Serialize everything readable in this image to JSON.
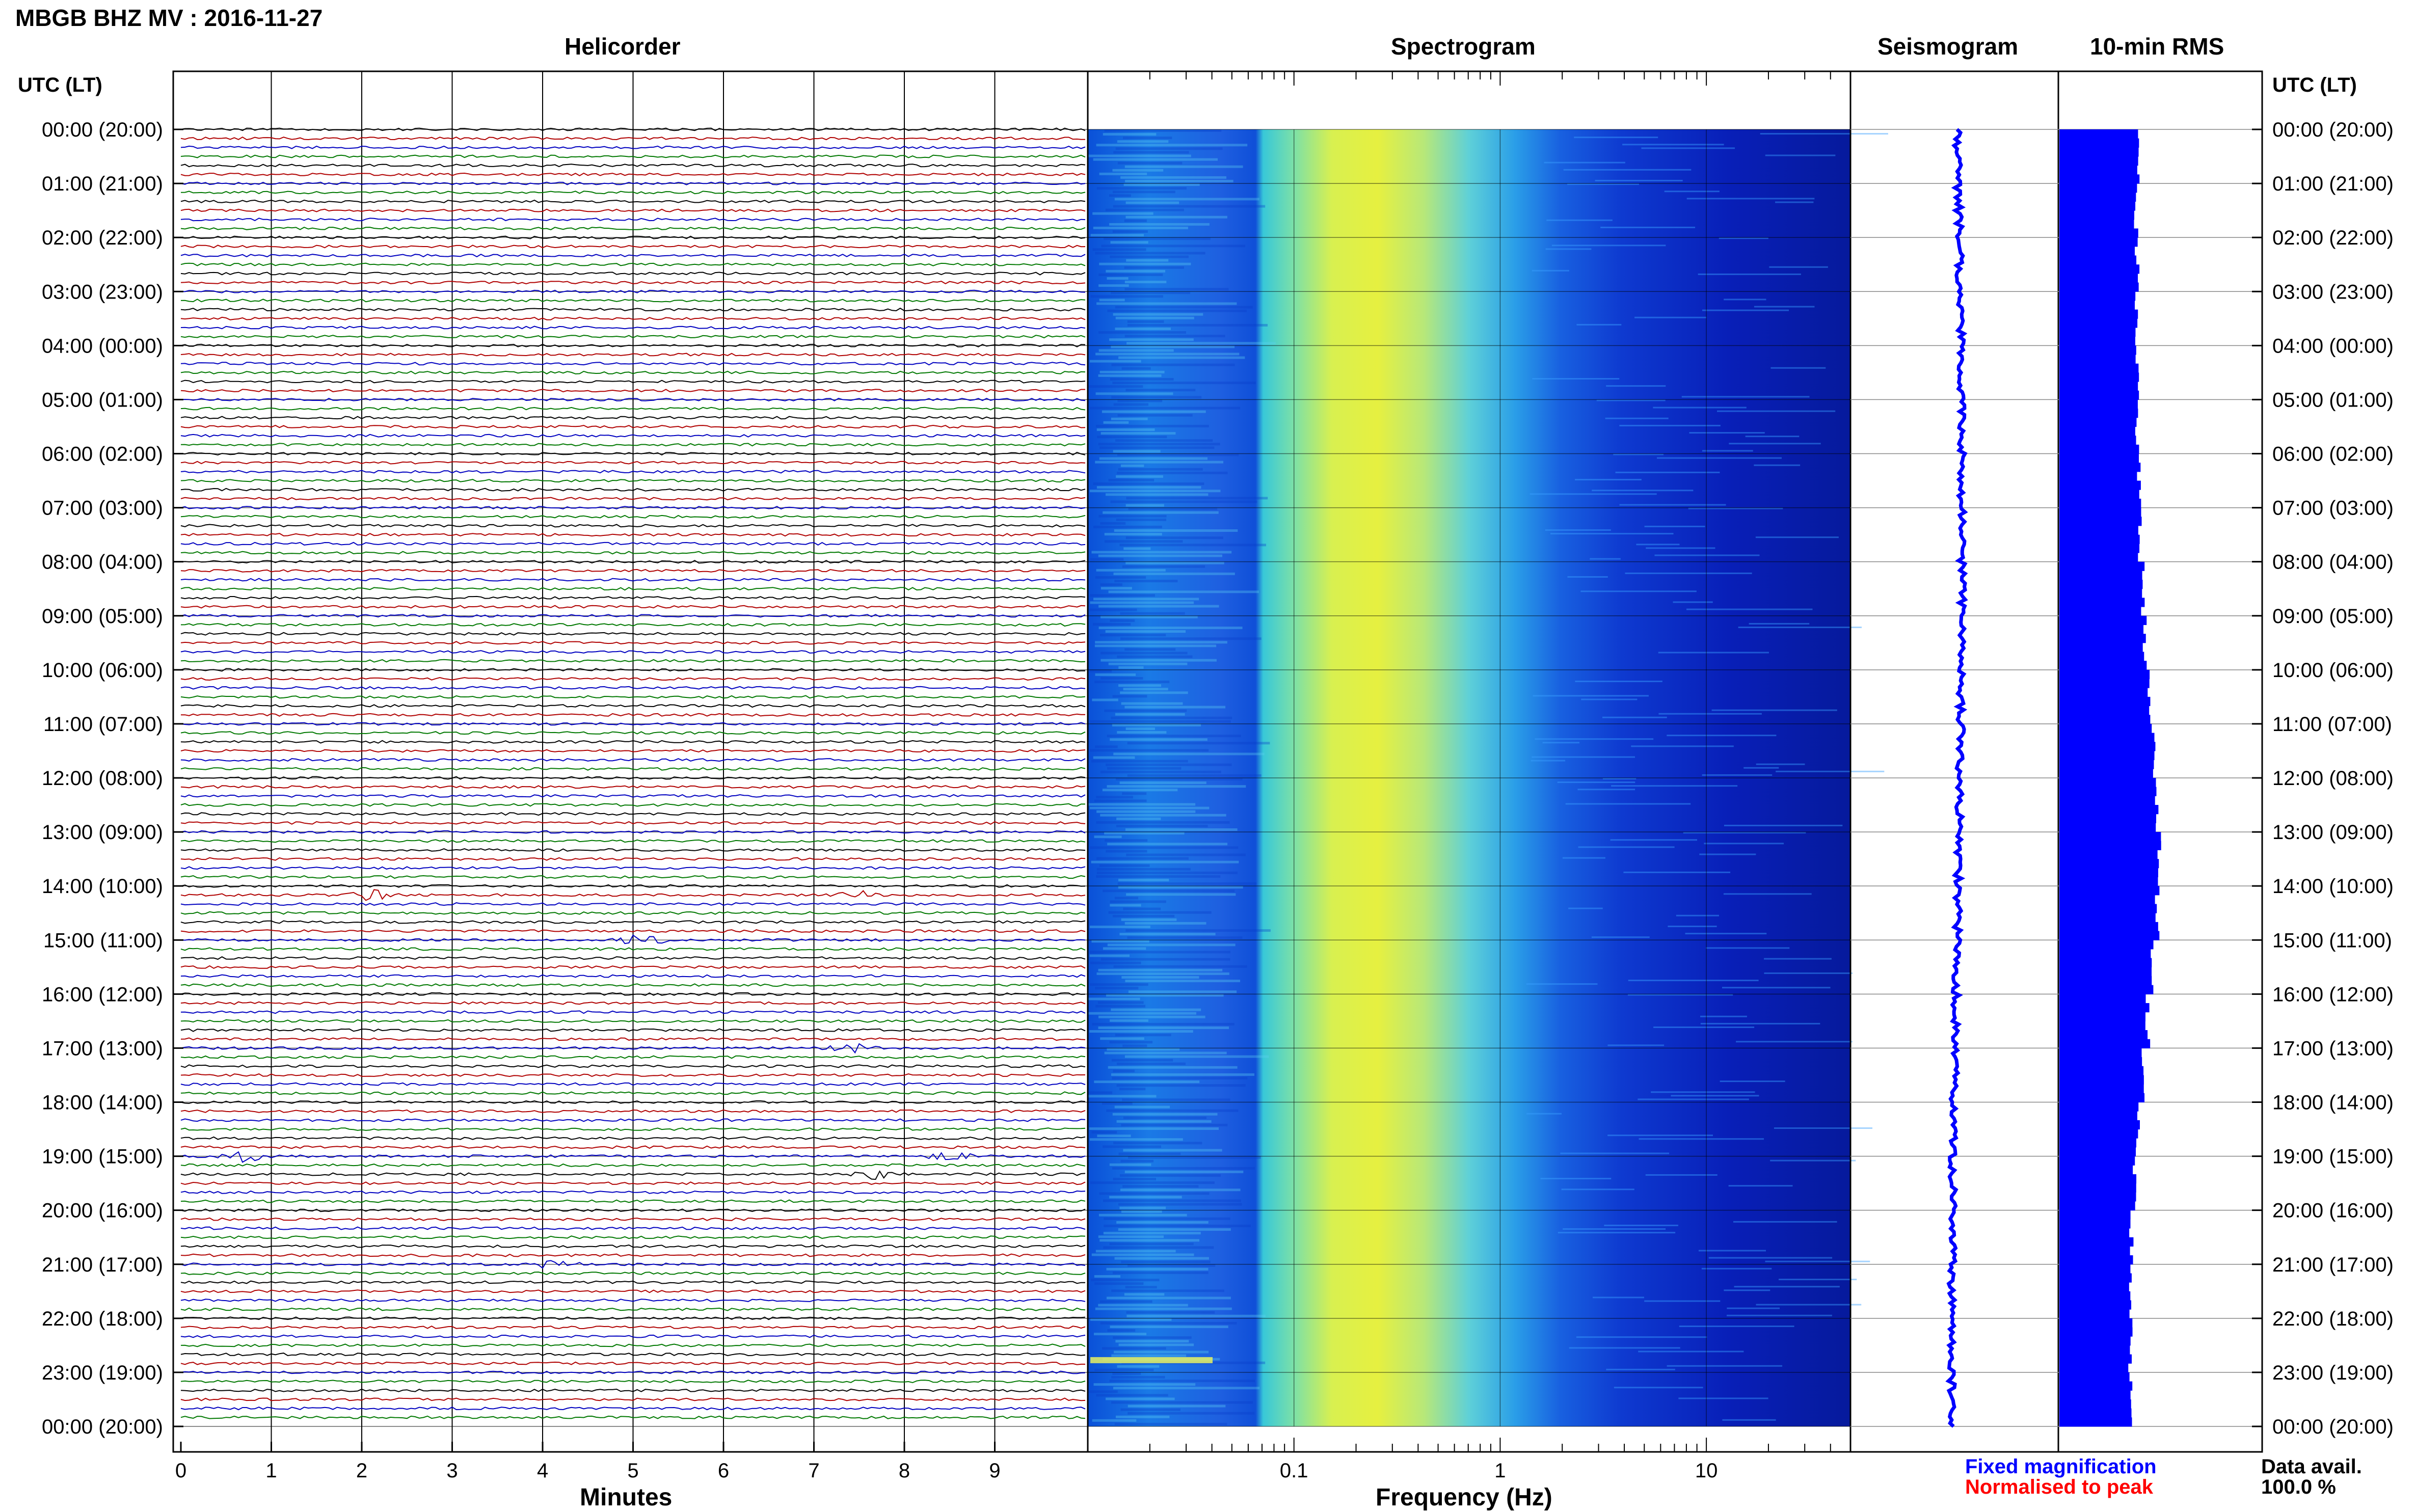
{
  "title": "MBGB BHZ MV : 2016-11-27",
  "panels": {
    "helicorder": "Helicorder",
    "spectrogram": "Spectrogram",
    "seismogram": "Seismogram",
    "rms": "10-min RMS"
  },
  "utc_label": "UTC (LT)",
  "time_labels": [
    "00:00 (20:00)",
    "01:00 (21:00)",
    "02:00 (22:00)",
    "03:00 (23:00)",
    "04:00 (00:00)",
    "05:00 (01:00)",
    "06:00 (02:00)",
    "07:00 (03:00)",
    "08:00 (04:00)",
    "09:00 (05:00)",
    "10:00 (06:00)",
    "11:00 (07:00)",
    "12:00 (08:00)",
    "13:00 (09:00)",
    "14:00 (10:00)",
    "15:00 (11:00)",
    "16:00 (12:00)",
    "17:00 (13:00)",
    "18:00 (14:00)",
    "19:00 (15:00)",
    "20:00 (16:00)",
    "21:00 (17:00)",
    "22:00 (18:00)",
    "23:00 (19:00)",
    "00:00 (20:00)"
  ],
  "footer": {
    "fixed_magnification": "Fixed magnification",
    "normalised_to_peak": "Normalised to peak",
    "data_avail_label": "Data avail.",
    "data_avail_value": "100.0 %"
  },
  "colors": {
    "trace": [
      "#000000",
      "#b00000",
      "#0000c0",
      "#007800"
    ],
    "fixed_magnification": "#0000ff",
    "normalised_to_peak": "#ff0000",
    "rms_bar": "#0000ff"
  },
  "chart_data": [
    {
      "type": "line",
      "name": "helicorder",
      "title": "Helicorder",
      "xlabel": "Minutes",
      "x_ticks": [
        0,
        1,
        2,
        3,
        4,
        5,
        6,
        7,
        8,
        9
      ],
      "xlim": [
        0,
        10
      ],
      "rows": 144,
      "minutes_per_row": 10,
      "events": [
        {
          "time_utc": "14:10",
          "minute": 7.5
        },
        {
          "time_utc": "14:10",
          "minute": 2.1
        },
        {
          "time_utc": "15:00",
          "minute": 5.1
        },
        {
          "time_utc": "17:00",
          "minute": 7.4
        },
        {
          "time_utc": "19:00",
          "minute": 0.7
        },
        {
          "time_utc": "19:00",
          "minute": 8.5
        },
        {
          "time_utc": "19:20",
          "minute": 7.7
        },
        {
          "time_utc": "21:00",
          "minute": 4.1
        }
      ]
    },
    {
      "type": "heatmap",
      "name": "spectrogram",
      "title": "Spectrogram",
      "xlabel": "Frequency (Hz)",
      "x_scale": "log",
      "xlim": [
        0.01,
        50
      ],
      "x_tick_labels": [
        "0.1",
        "1",
        "10"
      ],
      "x_tick_values": [
        0.1,
        1,
        10
      ],
      "peak_band_hz": [
        0.15,
        1.0
      ]
    },
    {
      "type": "line",
      "name": "seismogram",
      "title": "Seismogram"
    },
    {
      "type": "bar",
      "name": "rms",
      "title": "10-min RMS",
      "values": [
        0.74,
        0.72,
        0.73,
        0.72,
        0.73,
        0.73,
        0.75,
        0.76,
        0.78,
        0.8,
        0.84,
        0.88,
        0.92,
        0.94,
        0.92,
        0.87,
        0.83,
        0.78,
        0.74,
        0.71,
        0.68,
        0.67,
        0.67,
        0.68
      ]
    }
  ]
}
